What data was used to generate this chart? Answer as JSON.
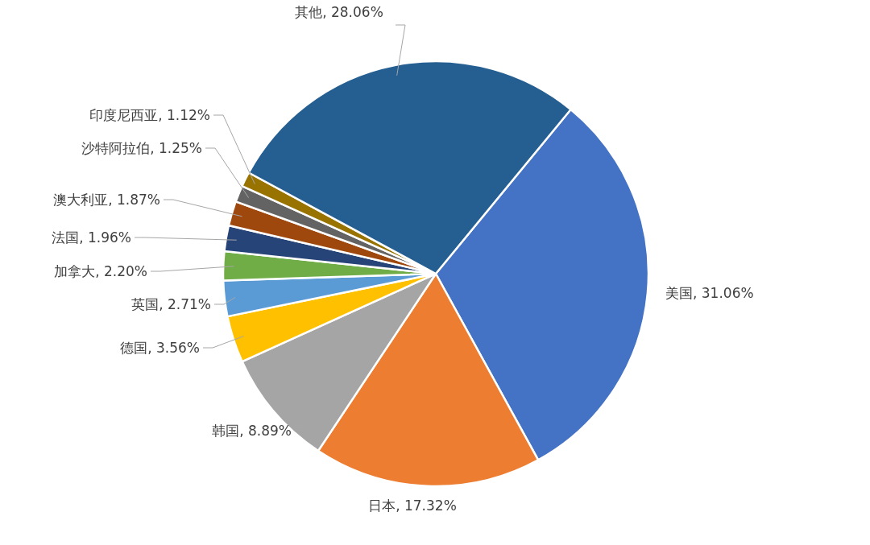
{
  "chart_data": {
    "type": "pie",
    "categories": [
      "美国",
      "日本",
      "韩国",
      "德国",
      "英国",
      "加拿大",
      "法国",
      "澳大利亚",
      "沙特阿拉伯",
      "印度尼西亚",
      "其他"
    ],
    "values": [
      31.06,
      17.32,
      8.89,
      3.56,
      2.71,
      2.2,
      1.96,
      1.87,
      1.25,
      1.12,
      28.06
    ],
    "value_labels": [
      "31.06%",
      "17.32%",
      "8.89%",
      "3.56%",
      "2.71%",
      "2.20%",
      "1.96%",
      "1.87%",
      "1.25%",
      "1.12%",
      "28.06%"
    ],
    "colors": [
      "#4472c4",
      "#ed7d31",
      "#a5a5a5",
      "#ffc000",
      "#5b9bd5",
      "#70ad47",
      "#264478",
      "#9e480e",
      "#636363",
      "#997300",
      "#255e91"
    ],
    "legend": false
  }
}
